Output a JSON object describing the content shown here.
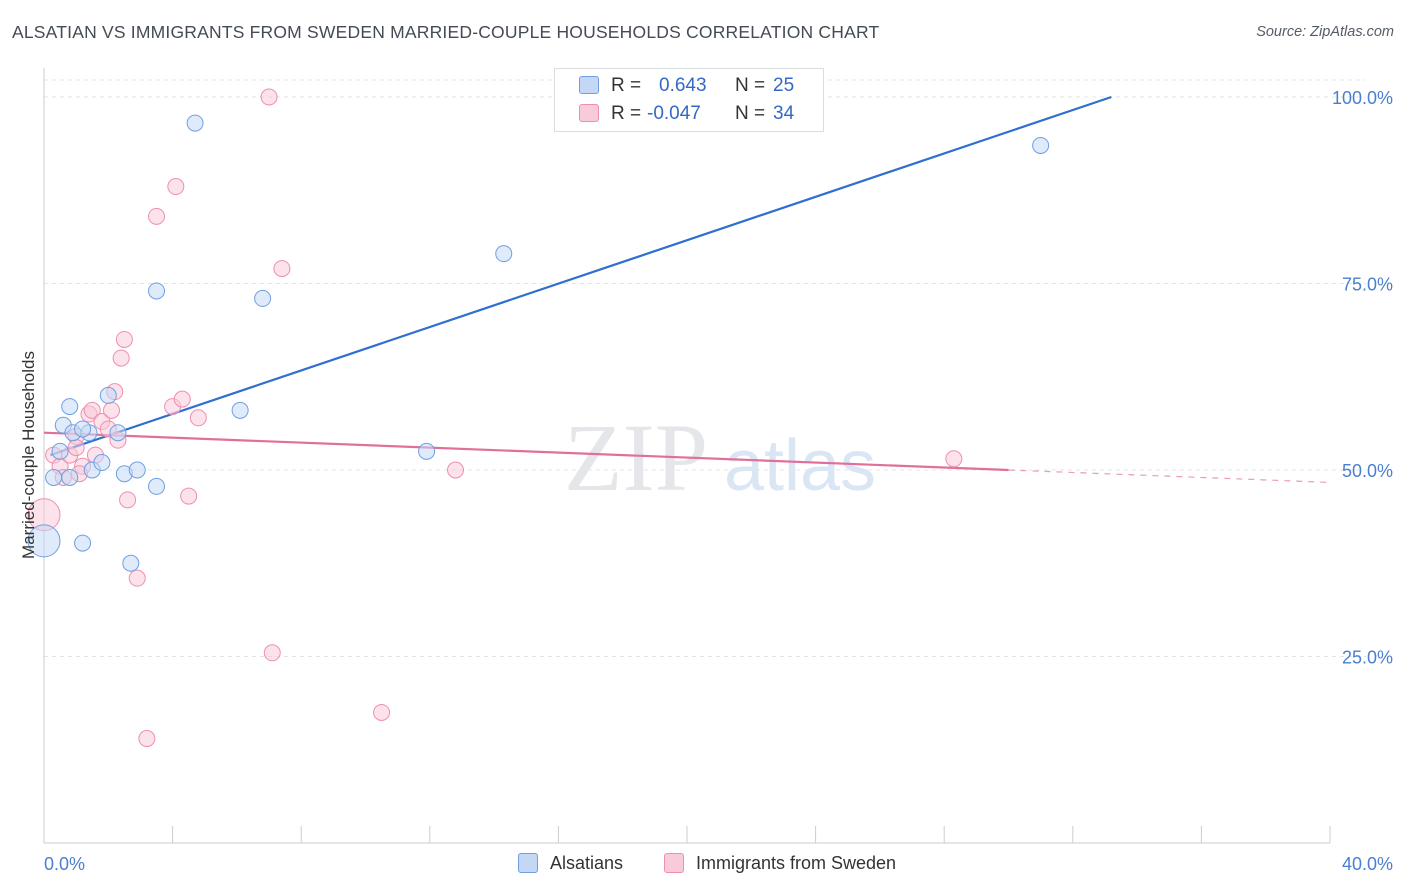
{
  "chart_data": {
    "type": "scatter",
    "title": "ALSATIAN VS IMMIGRANTS FROM SWEDEN MARRIED-COUPLE HOUSEHOLDS CORRELATION CHART",
    "source": "Source: ZipAtlas.com",
    "xlabel": "",
    "ylabel": "Married-couple Households",
    "xlim": [
      0,
      40
    ],
    "ylim": [
      0,
      100
    ],
    "x_tick_labels": [
      "0.0%",
      "40.0%"
    ],
    "y_ticks": [
      25,
      50,
      75,
      100
    ],
    "y_tick_labels": [
      "25.0%",
      "50.0%",
      "75.0%",
      "100.0%"
    ],
    "watermark": {
      "zip": "ZIP",
      "atlas": "atlas"
    },
    "legend": [
      {
        "r_label": "R =",
        "r_value": "0.643",
        "n_label": "N =",
        "n_value": "25"
      },
      {
        "r_label": "R =",
        "r_value": "-0.047",
        "n_label": "N =",
        "n_value": "34"
      }
    ],
    "series": [
      {
        "name": "Alsatians",
        "color": "#6f9fe0",
        "fill": "#c4d8f5",
        "trend": {
          "x0": 0.2,
          "y0": 52.0,
          "x1": 33.2,
          "y1": 100.0,
          "dash_to": null
        },
        "points": [
          [
            0.0,
            40.5
          ],
          [
            0.3,
            49.0
          ],
          [
            0.5,
            52.5
          ],
          [
            0.6,
            56.0
          ],
          [
            0.8,
            58.5
          ],
          [
            0.8,
            49.0
          ],
          [
            0.9,
            55.0
          ],
          [
            1.4,
            55.0
          ],
          [
            1.5,
            50.0
          ],
          [
            1.8,
            51.0
          ],
          [
            1.2,
            40.2
          ],
          [
            2.0,
            60.0
          ],
          [
            2.3,
            55.0
          ],
          [
            2.5,
            49.5
          ],
          [
            2.9,
            50.0
          ],
          [
            2.7,
            37.5
          ],
          [
            3.5,
            47.8
          ],
          [
            3.5,
            74.0
          ],
          [
            4.7,
            96.5
          ],
          [
            6.8,
            73.0
          ],
          [
            6.1,
            58.0
          ],
          [
            11.9,
            52.5
          ],
          [
            14.3,
            79.0
          ],
          [
            31.0,
            93.5
          ],
          [
            1.2,
            55.5
          ]
        ]
      },
      {
        "name": "Immigrants from Sweden",
        "color": "#ee8fb0",
        "fill": "#f8cadb",
        "trend": {
          "x0": 0.0,
          "y0": 55.0,
          "x1": 30.0,
          "y1": 50.0,
          "dash_to": 40.0
        },
        "points": [
          [
            0.0,
            44.0
          ],
          [
            0.3,
            52.0
          ],
          [
            0.5,
            50.5
          ],
          [
            0.6,
            49.0
          ],
          [
            0.8,
            52.0
          ],
          [
            1.0,
            54.5
          ],
          [
            1.0,
            53.0
          ],
          [
            1.2,
            50.5
          ],
          [
            1.4,
            57.5
          ],
          [
            1.5,
            58.0
          ],
          [
            1.6,
            52.0
          ],
          [
            1.8,
            56.5
          ],
          [
            2.0,
            55.5
          ],
          [
            2.1,
            58.0
          ],
          [
            2.2,
            60.5
          ],
          [
            2.3,
            54.0
          ],
          [
            2.5,
            67.5
          ],
          [
            2.4,
            65.0
          ],
          [
            2.6,
            46.0
          ],
          [
            2.9,
            35.5
          ],
          [
            3.2,
            14.0
          ],
          [
            3.5,
            84.0
          ],
          [
            4.0,
            58.5
          ],
          [
            4.1,
            88.0
          ],
          [
            4.3,
            59.5
          ],
          [
            4.5,
            46.5
          ],
          [
            4.8,
            57.0
          ],
          [
            7.0,
            100.0
          ],
          [
            7.1,
            25.5
          ],
          [
            7.4,
            77.0
          ],
          [
            10.5,
            17.5
          ],
          [
            12.8,
            50.0
          ],
          [
            28.3,
            51.5
          ],
          [
            1.1,
            49.5
          ]
        ]
      }
    ]
  },
  "bottom_legend": {
    "series1": "Alsatians",
    "series2": "Immigrants from Sweden"
  }
}
